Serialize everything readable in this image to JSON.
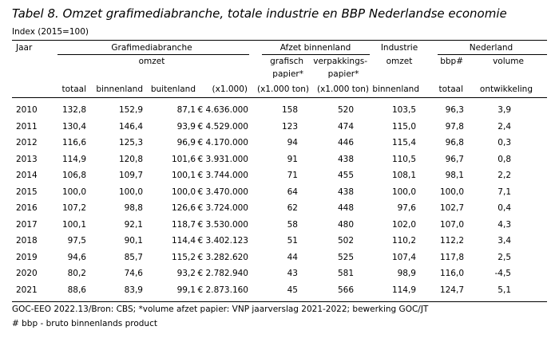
{
  "title": "Tabel 8. Omzet grafimediabranche, totale industrie en BBP Nederlandse economie",
  "subtitle": "Index (2015=100)",
  "headers": {
    "jaar": "Jaar",
    "grafimedia": "Grafimediabranche",
    "omzet": "omzet",
    "afzet": "Afzet binnenland",
    "grafisch": "grafisch",
    "papier_star": "papier*",
    "verpakkings": "verpakkings-",
    "papier_star2": "papier*",
    "industrie": "Industrie",
    "industrie_omzet": "omzet",
    "nederland": "Nederland",
    "bbp": "bbp#",
    "volume": "volume",
    "totaal": "totaal",
    "binnenland": "binnenland",
    "buitenland": "buitenland",
    "x1000": "(x1.000)",
    "x1000ton1": "(x1.000 ton)",
    "x1000ton2": "(x1.000 ton)",
    "ind_binnenland": "binnenland",
    "bbp_totaal": "totaal",
    "ontwikkeling": "ontwikkeling"
  },
  "rows": [
    [
      "2010",
      "132,8",
      "152,9",
      "87,1",
      "€ 4.636.000",
      "158",
      "520",
      "103,5",
      "96,3",
      "3,9"
    ],
    [
      "2011",
      "130,4",
      "146,4",
      "93,9",
      "€ 4.529.000",
      "123",
      "474",
      "115,0",
      "97,8",
      "2,4"
    ],
    [
      "2012",
      "116,6",
      "125,3",
      "96,9",
      "€ 4.170.000",
      "94",
      "446",
      "115,4",
      "96,8",
      "0,3"
    ],
    [
      "2013",
      "114,9",
      "120,8",
      "101,6",
      "€ 3.931.000",
      "91",
      "438",
      "110,5",
      "96,7",
      "0,8"
    ],
    [
      "2014",
      "106,8",
      "109,7",
      "100,1",
      "€ 3.744.000",
      "71",
      "455",
      "108,1",
      "98,1",
      "2,2"
    ],
    [
      "2015",
      "100,0",
      "100,0",
      "100,0",
      "€ 3.470.000",
      "64",
      "438",
      "100,0",
      "100,0",
      "7,1"
    ],
    [
      "2016",
      "107,2",
      "98,8",
      "126,6",
      "€ 3.724.000",
      "62",
      "448",
      "97,6",
      "102,7",
      "0,4"
    ],
    [
      "2017",
      "100,1",
      "92,1",
      "118,7",
      "€ 3.530.000",
      "58",
      "480",
      "102,0",
      "107,0",
      "4,3"
    ],
    [
      "2018",
      "97,5",
      "90,1",
      "114,4",
      "€ 3.402.123",
      "51",
      "502",
      "110,2",
      "112,2",
      "3,4"
    ],
    [
      "2019",
      "94,6",
      "85,7",
      "115,2",
      "€ 3.282.620",
      "44",
      "525",
      "107,4",
      "117,8",
      "2,5"
    ],
    [
      "2020",
      "80,2",
      "74,6",
      "93,2",
      "€ 2.782.940",
      "43",
      "581",
      "98,9",
      "116,0",
      "-4,5"
    ],
    [
      "2021",
      "88,6",
      "83,9",
      "99,1",
      "€ 2.873.160",
      "45",
      "566",
      "114,9",
      "124,7",
      "5,1"
    ]
  ],
  "footer": {
    "line1": "GOC-EEO 2022.13/Bron: CBS; *volume afzet papier: VNP jaarverslag 2021-2022; bewerking GOC/JT",
    "line2": "# bbp - bruto binnenlands product"
  }
}
